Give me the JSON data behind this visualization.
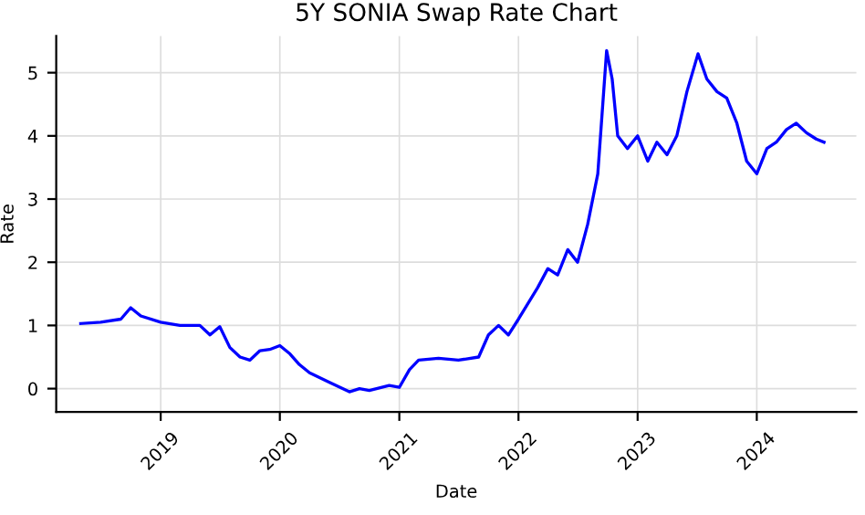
{
  "chart_data": {
    "type": "line",
    "title": "5Y SONIA Swap Rate Chart",
    "xlabel": "Date",
    "ylabel": "Rate",
    "x": [
      "2018-05-01",
      "2018-07-01",
      "2018-09-01",
      "2018-10-01",
      "2018-11-01",
      "2019-01-01",
      "2019-03-01",
      "2019-05-01",
      "2019-06-01",
      "2019-07-01",
      "2019-08-01",
      "2019-09-01",
      "2019-10-01",
      "2019-11-01",
      "2019-12-01",
      "2020-01-01",
      "2020-02-01",
      "2020-03-01",
      "2020-04-01",
      "2020-06-01",
      "2020-08-01",
      "2020-09-01",
      "2020-10-01",
      "2020-12-01",
      "2021-01-01",
      "2021-02-01",
      "2021-03-01",
      "2021-05-01",
      "2021-07-01",
      "2021-09-01",
      "2021-10-01",
      "2021-11-01",
      "2021-12-01",
      "2022-01-01",
      "2022-03-01",
      "2022-04-01",
      "2022-05-01",
      "2022-06-01",
      "2022-07-01",
      "2022-08-01",
      "2022-09-01",
      "2022-09-28",
      "2022-10-15",
      "2022-11-01",
      "2022-12-01",
      "2023-01-01",
      "2023-02-01",
      "2023-03-01",
      "2023-04-01",
      "2023-05-01",
      "2023-06-01",
      "2023-07-05",
      "2023-08-01",
      "2023-09-01",
      "2023-10-01",
      "2023-11-01",
      "2023-12-01",
      "2024-01-01",
      "2024-02-01",
      "2024-03-01",
      "2024-04-01",
      "2024-05-01",
      "2024-06-01",
      "2024-07-01",
      "2024-07-25"
    ],
    "series": [
      {
        "color": "#0000ff",
        "values": [
          1.03,
          1.05,
          1.1,
          1.28,
          1.15,
          1.05,
          1.0,
          1.0,
          0.85,
          0.98,
          0.65,
          0.5,
          0.45,
          0.6,
          0.62,
          0.68,
          0.55,
          0.38,
          0.25,
          0.1,
          -0.05,
          0.0,
          -0.03,
          0.05,
          0.02,
          0.3,
          0.45,
          0.48,
          0.45,
          0.5,
          0.85,
          1.0,
          0.85,
          1.1,
          1.6,
          1.9,
          1.8,
          2.2,
          2.0,
          2.6,
          3.4,
          5.35,
          4.9,
          4.0,
          3.8,
          4.0,
          3.6,
          3.9,
          3.7,
          4.0,
          4.7,
          5.3,
          4.9,
          4.7,
          4.6,
          4.2,
          3.6,
          3.4,
          3.8,
          3.9,
          4.1,
          4.2,
          4.05,
          3.95,
          3.9
        ]
      }
    ],
    "xlim": [
      "2018-02-15",
      "2024-11-01"
    ],
    "xticks": [
      {
        "value": "2019-01-01",
        "label": "2019"
      },
      {
        "value": "2020-01-01",
        "label": "2020"
      },
      {
        "value": "2021-01-01",
        "label": "2021"
      },
      {
        "value": "2022-01-01",
        "label": "2022"
      },
      {
        "value": "2023-01-01",
        "label": "2023"
      },
      {
        "value": "2024-01-01",
        "label": "2024"
      }
    ],
    "ylim": [
      -0.37,
      5.58
    ],
    "yticks": [
      0,
      1,
      2,
      3,
      4,
      5
    ],
    "grid": true,
    "marker": "none",
    "line_style": "solid"
  }
}
